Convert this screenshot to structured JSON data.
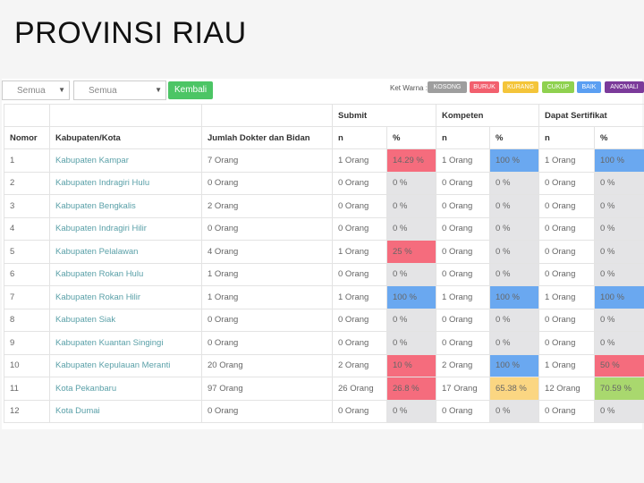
{
  "title": "PROVINSI RIAU",
  "filters": {
    "select1": "Semua",
    "select2": "Semua",
    "back_label": "Kembali"
  },
  "legend": {
    "label": "Ket Warna :",
    "items": [
      {
        "label": "KOSONG",
        "color": "#9e9e9e"
      },
      {
        "label": "BURUK",
        "color": "#f2606e"
      },
      {
        "label": "KURANG",
        "color": "#f4c53a"
      },
      {
        "label": "CUKUP",
        "color": "#8fd14f"
      },
      {
        "label": "BAIK",
        "color": "#5b9ff2"
      },
      {
        "label": "ANOMALI",
        "color": "#7b3a9a"
      }
    ]
  },
  "table": {
    "groups": {
      "submit": "Submit",
      "kompeten": "Kompeten",
      "sertifikat": "Dapat Sertifikat"
    },
    "headers": {
      "nomor": "Nomor",
      "kab": "Kabupaten/Kota",
      "jumlah": "Jumlah Dokter dan Bidan",
      "n": "n",
      "pct": "%"
    },
    "rows": [
      {
        "no": "1",
        "kab": "Kabupaten Kampar",
        "jumlah": "7 Orang",
        "sn": "1 Orang",
        "sp": "14.29 %",
        "sc": "red",
        "kn": "1 Orang",
        "kp": "100 %",
        "kc": "blue",
        "dn": "1 Orang",
        "dp": "100 %",
        "dc": "blue"
      },
      {
        "no": "2",
        "kab": "Kabupaten Indragiri Hulu",
        "jumlah": "0 Orang",
        "sn": "0 Orang",
        "sp": "0 %",
        "sc": "gray",
        "kn": "0 Orang",
        "kp": "0 %",
        "kc": "gray",
        "dn": "0 Orang",
        "dp": "0 %",
        "dc": "gray"
      },
      {
        "no": "3",
        "kab": "Kabupaten Bengkalis",
        "jumlah": "2 Orang",
        "sn": "0 Orang",
        "sp": "0 %",
        "sc": "gray",
        "kn": "0 Orang",
        "kp": "0 %",
        "kc": "gray",
        "dn": "0 Orang",
        "dp": "0 %",
        "dc": "gray"
      },
      {
        "no": "4",
        "kab": "Kabupaten Indragiri Hilir",
        "jumlah": "0 Orang",
        "sn": "0 Orang",
        "sp": "0 %",
        "sc": "gray",
        "kn": "0 Orang",
        "kp": "0 %",
        "kc": "gray",
        "dn": "0 Orang",
        "dp": "0 %",
        "dc": "gray"
      },
      {
        "no": "5",
        "kab": "Kabupaten Pelalawan",
        "jumlah": "4 Orang",
        "sn": "1 Orang",
        "sp": "25 %",
        "sc": "red",
        "kn": "0 Orang",
        "kp": "0 %",
        "kc": "gray",
        "dn": "0 Orang",
        "dp": "0 %",
        "dc": "gray"
      },
      {
        "no": "6",
        "kab": "Kabupaten Rokan Hulu",
        "jumlah": "1 Orang",
        "sn": "0 Orang",
        "sp": "0 %",
        "sc": "gray",
        "kn": "0 Orang",
        "kp": "0 %",
        "kc": "gray",
        "dn": "0 Orang",
        "dp": "0 %",
        "dc": "gray"
      },
      {
        "no": "7",
        "kab": "Kabupaten Rokan Hilir",
        "jumlah": "1 Orang",
        "sn": "1 Orang",
        "sp": "100 %",
        "sc": "blue",
        "kn": "1 Orang",
        "kp": "100 %",
        "kc": "blue",
        "dn": "1 Orang",
        "dp": "100 %",
        "dc": "blue"
      },
      {
        "no": "8",
        "kab": "Kabupaten Siak",
        "jumlah": "0 Orang",
        "sn": "0 Orang",
        "sp": "0 %",
        "sc": "gray",
        "kn": "0 Orang",
        "kp": "0 %",
        "kc": "gray",
        "dn": "0 Orang",
        "dp": "0 %",
        "dc": "gray"
      },
      {
        "no": "9",
        "kab": "Kabupaten Kuantan Singingi",
        "jumlah": "0 Orang",
        "sn": "0 Orang",
        "sp": "0 %",
        "sc": "gray",
        "kn": "0 Orang",
        "kp": "0 %",
        "kc": "gray",
        "dn": "0 Orang",
        "dp": "0 %",
        "dc": "gray"
      },
      {
        "no": "10",
        "kab": "Kabupaten Kepulauan Meranti",
        "jumlah": "20 Orang",
        "sn": "2 Orang",
        "sp": "10 %",
        "sc": "red",
        "kn": "2 Orang",
        "kp": "100 %",
        "kc": "blue",
        "dn": "1 Orang",
        "dp": "50 %",
        "dc": "red"
      },
      {
        "no": "11",
        "kab": "Kota Pekanbaru",
        "jumlah": "97 Orang",
        "sn": "26 Orang",
        "sp": "26.8 %",
        "sc": "red",
        "kn": "17 Orang",
        "kp": "65.38 %",
        "kc": "yellow",
        "dn": "12 Orang",
        "dp": "70.59 %",
        "dc": "green"
      },
      {
        "no": "12",
        "kab": "Kota Dumai",
        "jumlah": "0 Orang",
        "sn": "0 Orang",
        "sp": "0 %",
        "sc": "gray",
        "kn": "0 Orang",
        "kp": "0 %",
        "kc": "gray",
        "dn": "0 Orang",
        "dp": "0 %",
        "dc": "gray"
      }
    ]
  }
}
